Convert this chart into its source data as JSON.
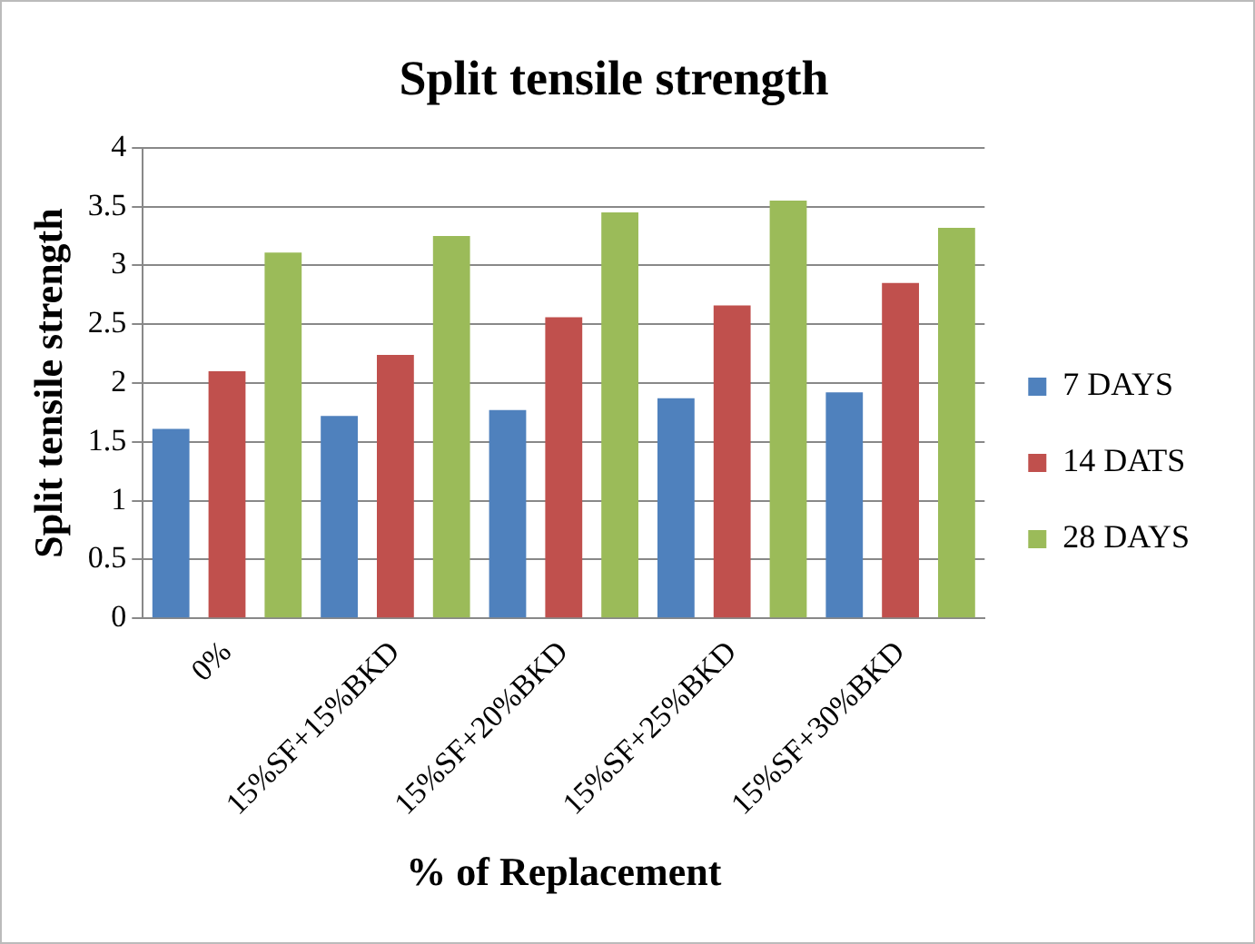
{
  "chart_data": {
    "type": "bar",
    "title": "Split tensile strength",
    "xlabel": "% of Replacement",
    "ylabel": "Split tensile strength",
    "categories": [
      "0%",
      "15%SF+15%BKD",
      "15%SF+20%BKD",
      "15%SF+25%BKD",
      "15%SF+30%BKD"
    ],
    "series": [
      {
        "name": "7 DAYS",
        "color": "#4f81bd",
        "values": [
          1.61,
          1.72,
          1.77,
          1.87,
          1.92
        ]
      },
      {
        "name": "14 DATS",
        "color": "#c0504d",
        "values": [
          2.1,
          2.24,
          2.56,
          2.66,
          2.85
        ]
      },
      {
        "name": "28 DAYS",
        "color": "#9bbb59",
        "values": [
          3.11,
          3.25,
          3.45,
          3.55,
          3.32
        ]
      }
    ],
    "ylim": [
      0,
      4
    ],
    "yticks": [
      0,
      0.5,
      1,
      1.5,
      2,
      2.5,
      3,
      3.5,
      4
    ],
    "grid": "y",
    "legend": "right"
  }
}
